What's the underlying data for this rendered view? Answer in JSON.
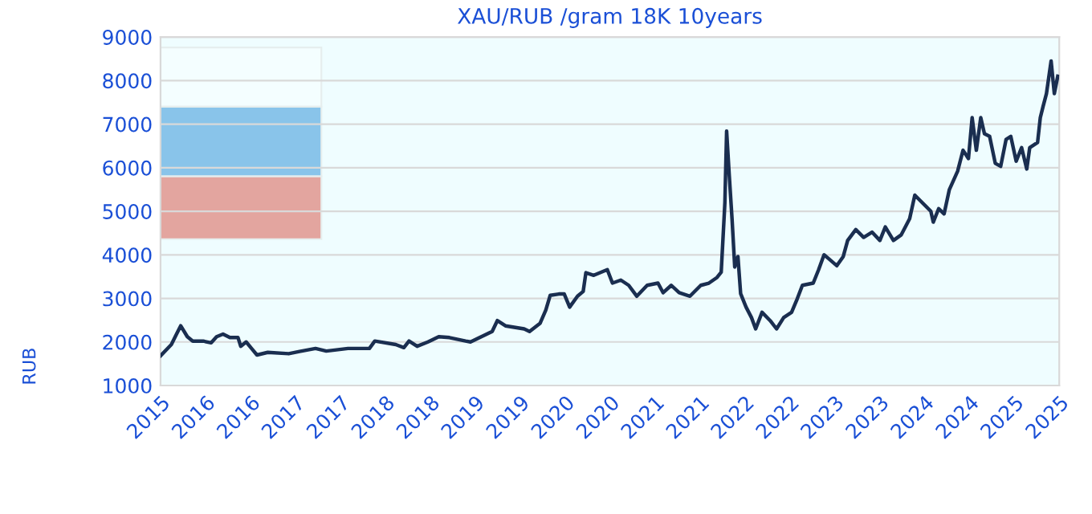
{
  "chart_data": {
    "type": "line",
    "title": "XAU/RUB /gram 18K 10years",
    "ylabel": "RUB",
    "x": [
      "2015-10-01",
      "2015-11-14",
      "2015-12-05",
      "2015-12-22",
      "2016-01-18",
      "2016-02-09",
      "2016-03-22",
      "2016-04-24",
      "2016-05-16",
      "2016-06-11",
      "2016-07-09",
      "2016-08-11",
      "2016-08-22",
      "2016-09-13",
      "2016-10-05",
      "2016-10-27",
      "2016-12-10",
      "2017-03-05",
      "2017-04-18",
      "2017-06-22",
      "2017-08-05",
      "2017-11-01",
      "2018-01-27",
      "2018-02-18",
      "2018-05-14",
      "2018-06-16",
      "2018-07-07",
      "2018-08-09",
      "2018-09-22",
      "2018-11-05",
      "2018-12-18",
      "2019-02-22",
      "2019-03-14",
      "2019-04-27",
      "2019-06-10",
      "2019-07-01",
      "2019-08-03",
      "2019-10-18",
      "2019-11-09",
      "2019-12-22",
      "2020-01-14",
      "2020-02-01",
      "2020-03-07",
      "2020-03-29",
      "2020-04-20",
      "2020-05-22",
      "2020-06-14",
      "2020-06-25",
      "2020-07-27",
      "2020-09-20",
      "2020-10-11",
      "2020-11-14",
      "2020-12-16",
      "2021-01-18",
      "2021-03-01",
      "2021-04-14",
      "2021-05-05",
      "2021-06-07",
      "2021-07-09",
      "2021-08-22",
      "2021-10-05",
      "2021-11-07",
      "2021-12-10",
      "2021-12-27",
      "2022-01-11",
      "2022-01-18",
      "2022-01-29",
      "2022-02-09",
      "2022-02-20",
      "2022-03-05",
      "2022-03-16",
      "2022-04-07",
      "2022-04-29",
      "2022-05-16",
      "2022-06-11",
      "2022-07-14",
      "2022-08-09",
      "2022-09-07",
      "2022-10-09",
      "2022-11-01",
      "2022-11-22",
      "2023-01-05",
      "2023-01-27",
      "2023-02-18",
      "2023-03-09",
      "2023-04-11",
      "2023-05-07",
      "2023-05-25",
      "2023-06-27",
      "2023-07-29",
      "2023-09-01",
      "2023-10-03",
      "2023-10-25",
      "2023-11-27",
      "2023-12-29",
      "2024-02-01",
      "2024-02-22",
      "2024-03-14",
      "2024-04-27",
      "2024-05-07",
      "2024-05-29",
      "2024-06-20",
      "2024-07-11",
      "2024-08-14",
      "2024-09-05",
      "2024-09-27",
      "2024-10-12",
      "2024-10-29",
      "2024-11-16",
      "2024-12-01",
      "2024-12-22",
      "2025-01-14",
      "2025-02-05",
      "2025-02-27",
      "2025-03-18",
      "2025-04-09",
      "2025-05-01",
      "2025-05-22",
      "2025-06-03",
      "2025-07-05",
      "2025-07-16",
      "2025-07-27",
      "2025-08-10",
      "2025-08-29",
      "2025-09-11",
      "2025-09-25"
    ],
    "series": [
      {
        "color": "#1a2e50",
        "values": [
          1680,
          1940,
          2180,
          2370,
          2120,
          2020,
          2020,
          1980,
          2120,
          2180,
          2100,
          2100,
          1900,
          2000,
          1850,
          1700,
          1760,
          1730,
          1780,
          1850,
          1790,
          1850,
          1850,
          2020,
          1940,
          1870,
          2020,
          1900,
          2000,
          2120,
          2100,
          2020,
          2000,
          2120,
          2240,
          2490,
          2370,
          2300,
          2240,
          2430,
          2730,
          3070,
          3100,
          3100,
          2800,
          3050,
          3160,
          3590,
          3530,
          3660,
          3350,
          3420,
          3300,
          3050,
          3300,
          3350,
          3130,
          3300,
          3130,
          3050,
          3300,
          3350,
          3480,
          3600,
          5200,
          6840,
          5800,
          4830,
          3720,
          3960,
          3110,
          2800,
          2560,
          2300,
          2680,
          2490,
          2300,
          2560,
          2680,
          2990,
          3300,
          3350,
          3660,
          4000,
          3910,
          3750,
          3960,
          4330,
          4580,
          4400,
          4520,
          4330,
          4640,
          4330,
          4460,
          4830,
          5370,
          5250,
          5000,
          4750,
          5060,
          4940,
          5490,
          5920,
          6400,
          6210,
          7150,
          6400,
          7150,
          6780,
          6720,
          6100,
          6030,
          6650,
          6720,
          6150,
          6460,
          5970,
          6460,
          6580,
          7150,
          7400,
          7700,
          8450,
          7700,
          8100
        ]
      }
    ],
    "xlim": [
      "2015-10-01",
      "2025-10-01"
    ],
    "xticks": [
      {
        "value": "2015-10-01",
        "label": "2015"
      },
      {
        "value": "2016-04-01",
        "label": "2016"
      },
      {
        "value": "2016-10-01",
        "label": "2016"
      },
      {
        "value": "2017-04-01",
        "label": "2017"
      },
      {
        "value": "2017-10-01",
        "label": "2017"
      },
      {
        "value": "2018-04-01",
        "label": "2018"
      },
      {
        "value": "2018-10-01",
        "label": "2018"
      },
      {
        "value": "2019-04-01",
        "label": "2019"
      },
      {
        "value": "2019-10-01",
        "label": "2019"
      },
      {
        "value": "2020-04-01",
        "label": "2020"
      },
      {
        "value": "2020-10-01",
        "label": "2020"
      },
      {
        "value": "2021-04-01",
        "label": "2021"
      },
      {
        "value": "2021-10-01",
        "label": "2021"
      },
      {
        "value": "2022-04-01",
        "label": "2022"
      },
      {
        "value": "2022-10-01",
        "label": "2022"
      },
      {
        "value": "2023-04-01",
        "label": "2023"
      },
      {
        "value": "2023-10-01",
        "label": "2023"
      },
      {
        "value": "2024-04-01",
        "label": "2024"
      },
      {
        "value": "2024-10-01",
        "label": "2024"
      },
      {
        "value": "2025-04-01",
        "label": "2025"
      },
      {
        "value": "2025-10-01",
        "label": "2025"
      }
    ],
    "ylim": [
      1000,
      9000
    ],
    "yticks": [
      1000,
      2000,
      3000,
      4000,
      5000,
      6000,
      7000,
      8000,
      9000
    ],
    "grid": "y",
    "marker": "none",
    "line_style": "solid"
  }
}
